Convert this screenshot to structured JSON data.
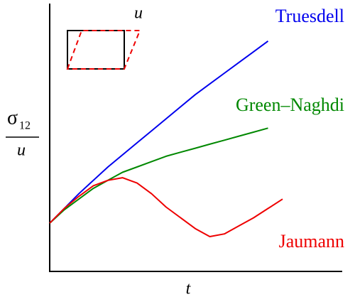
{
  "chart_data": {
    "type": "line",
    "x_label": "t",
    "y_label": {
      "symbol": "σ",
      "subscript": "12",
      "denominator": "u"
    },
    "annotation": "u",
    "x": [
      0,
      0.5,
      1,
      1.5,
      2,
      2.5,
      3,
      3.5,
      4,
      4.5,
      5,
      5.5,
      6,
      6.5,
      7,
      7.5,
      8
    ],
    "xlim": [
      0,
      10
    ],
    "ylim": [
      0,
      10
    ],
    "series": [
      {
        "name": "Truesdell",
        "color": "#0000ee",
        "values": [
          1.8,
          2.35,
          2.9,
          3.4,
          3.9,
          4.35,
          4.8,
          5.25,
          5.7,
          6.15,
          6.6,
          7.0,
          7.4,
          7.8,
          8.2,
          8.6,
          null
        ]
      },
      {
        "name": "Green–Naghdi",
        "color": "#008800",
        "values": [
          1.8,
          2.3,
          2.7,
          3.1,
          3.4,
          3.7,
          3.9,
          4.1,
          4.3,
          4.45,
          4.6,
          4.75,
          4.9,
          5.05,
          5.2,
          5.35,
          null
        ]
      },
      {
        "name": "Jaumann",
        "color": "#ee0000",
        "values": [
          1.8,
          2.35,
          2.8,
          3.2,
          3.4,
          3.5,
          3.3,
          2.9,
          2.4,
          2.0,
          1.6,
          1.3,
          1.4,
          1.7,
          2.0,
          2.35,
          2.7
        ]
      }
    ]
  }
}
